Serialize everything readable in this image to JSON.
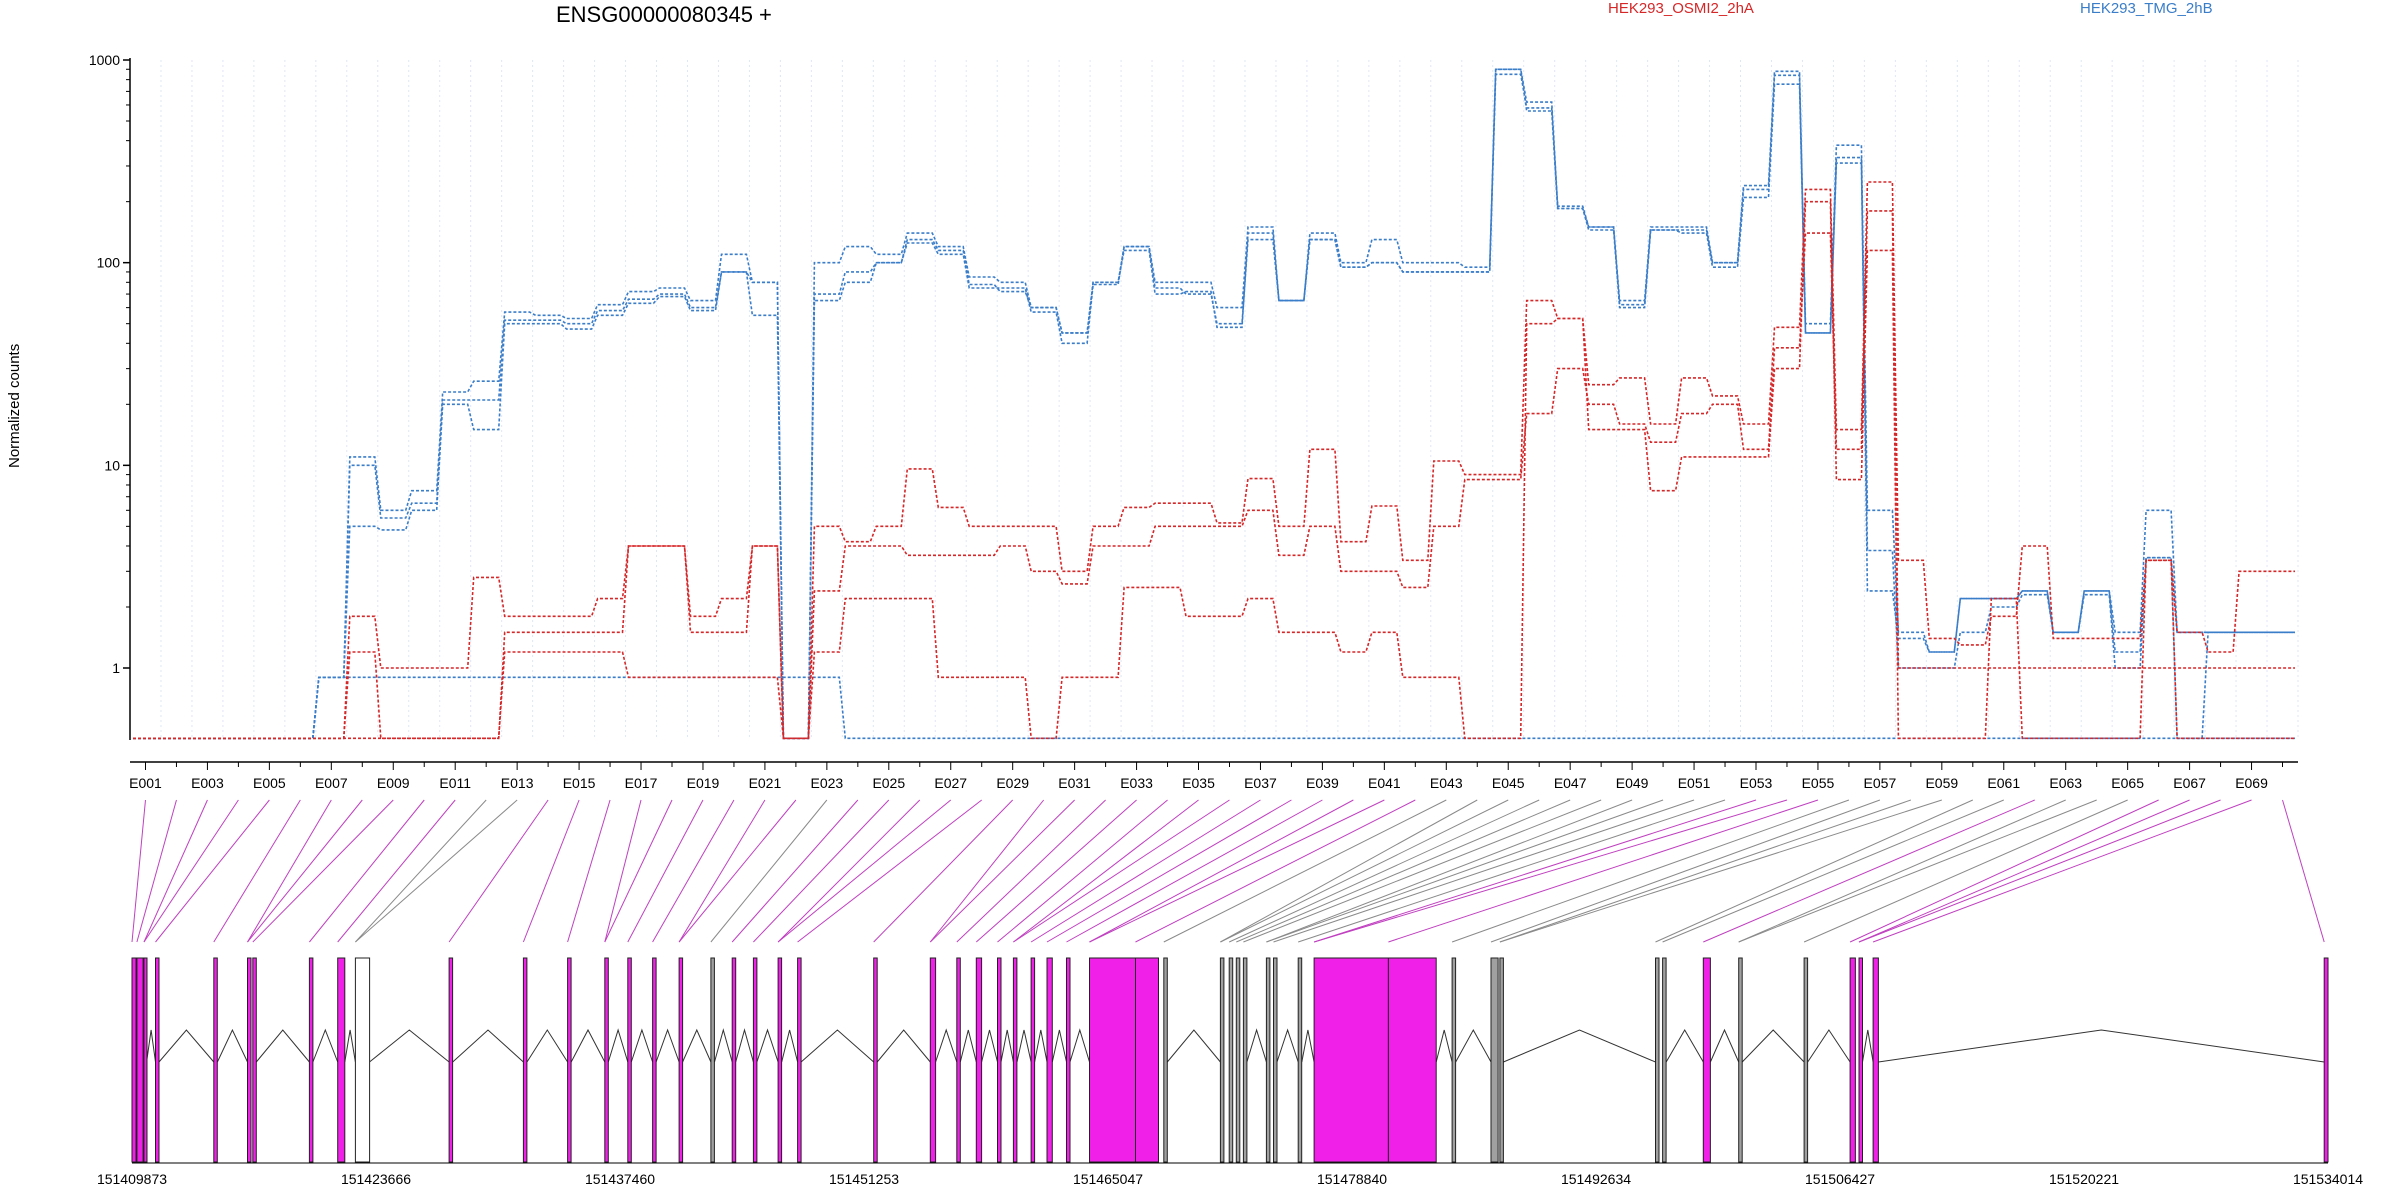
{
  "chart_data": {
    "type": "line",
    "title": "ENSG00000080345 +",
    "ylabel": "Normalized counts",
    "xlabel": "",
    "yscale": "log",
    "ylim": [
      0.45,
      1000
    ],
    "yticks": [
      "1000",
      "100",
      "10",
      "1"
    ],
    "xtick_labels": [
      "E001",
      "E003",
      "E005",
      "E007",
      "E009",
      "E011",
      "E013",
      "E015",
      "E017",
      "E019",
      "E021",
      "E023",
      "E025",
      "E027",
      "E029",
      "E031",
      "E033",
      "E035",
      "E037",
      "E039",
      "E041",
      "E043",
      "E045",
      "E047",
      "E049",
      "E051",
      "E053",
      "E055",
      "E057",
      "E059",
      "E061",
      "E063",
      "E065",
      "E067",
      "E069"
    ],
    "grid": true,
    "legend": [
      "HEK293_OSMI2_2hA",
      "HEK293_TMG_2hB"
    ],
    "series": [
      {
        "name": "HEK293_TMG_2hB",
        "color": "#3a7dc9",
        "values": [
          0.45,
          0.45,
          0.45,
          0.45,
          0.45,
          0.45,
          0.9,
          0.9,
          0.9,
          0.9,
          0.9,
          0.9,
          0.9,
          0.9,
          0.9,
          0.9,
          0.9,
          0.9,
          0.9,
          0.9,
          0.9,
          0.9,
          0.9,
          0.45,
          0.45,
          0.45,
          0.45,
          0.45,
          0.45,
          0.45,
          0.45,
          0.45,
          0.45,
          0.45,
          0.45,
          0.45,
          0.45,
          0.45,
          0.45,
          0.45,
          0.45,
          0.45,
          0.45,
          0.45,
          0.45,
          0.45,
          0.45,
          0.45,
          0.45,
          0.45,
          0.45,
          0.45,
          0.45,
          0.45,
          0.45,
          0.45,
          0.45,
          0.45,
          0.45,
          0.45,
          0.45,
          0.45,
          0.45,
          0.45,
          0.45,
          0.45,
          0.45,
          0.45,
          0.45,
          0.45
        ]
      },
      {
        "name": "HEK293_TMG_2hB",
        "color": "#3a7dc9",
        "values": [
          0.45,
          0.45,
          0.45,
          0.45,
          0.45,
          0.45,
          0.9,
          11,
          6,
          7.5,
          23,
          26,
          57,
          55,
          53,
          62,
          72,
          75,
          65,
          110,
          80,
          0.45,
          100,
          120,
          110,
          140,
          120,
          85,
          80,
          60,
          45,
          80,
          120,
          80,
          80,
          60,
          150,
          65,
          140,
          100,
          130,
          100,
          100,
          95,
          900,
          620,
          190,
          150,
          65,
          150,
          150,
          100,
          240,
          880,
          50,
          380,
          6,
          1.5,
          1.2,
          2.2,
          2.2,
          2.4,
          1.5,
          2.4,
          1.5,
          6,
          1.5,
          1.5,
          1.5,
          1.5
        ]
      },
      {
        "name": "HEK293_TMG_2hB",
        "color": "#3a7dc9",
        "values": [
          0.45,
          0.45,
          0.45,
          0.45,
          0.45,
          0.45,
          0.9,
          10,
          5.5,
          6.5,
          21,
          21,
          52,
          52,
          50,
          58,
          66,
          70,
          60,
          90,
          55,
          0.45,
          70,
          90,
          100,
          125,
          110,
          75,
          75,
          57,
          40,
          78,
          120,
          75,
          70,
          50,
          130,
          65,
          130,
          95,
          100,
          90,
          90,
          90,
          850,
          580,
          185,
          145,
          62,
          145,
          140,
          95,
          210,
          760,
          45,
          310,
          3.8,
          1,
          1,
          1.5,
          2,
          2.3,
          1.5,
          2.3,
          1,
          3.5,
          1.5,
          1.5,
          1.5,
          1.5
        ]
      },
      {
        "name": "HEK293_TMG_2hB",
        "color": "#3a7dc9",
        "values": [
          0.45,
          0.45,
          0.45,
          0.45,
          0.45,
          0.45,
          0.9,
          5,
          4.8,
          6,
          20,
          15,
          50,
          50,
          47,
          55,
          63,
          68,
          58,
          90,
          80,
          0.45,
          65,
          80,
          100,
          130,
          115,
          78,
          72,
          60,
          45,
          80,
          115,
          70,
          72,
          48,
          140,
          65,
          130,
          95,
          100,
          90,
          90,
          90,
          900,
          560,
          185,
          150,
          60,
          145,
          145,
          100,
          230,
          840,
          45,
          330,
          2.4,
          1.4,
          1.2,
          2.2,
          2.2,
          2.4,
          1.5,
          2.4,
          1.2,
          3.5,
          0.45,
          1.5,
          1.5,
          1.5
        ]
      },
      {
        "name": "HEK293_OSMI2_2hA",
        "color": "#d62728",
        "values": [
          0.45,
          0.45,
          0.45,
          0.45,
          0.45,
          0.45,
          0.45,
          1.8,
          1,
          1,
          1,
          2.8,
          1.8,
          1.8,
          1.8,
          2.2,
          4,
          4,
          1.8,
          2.2,
          4,
          0.45,
          5,
          4.2,
          5,
          9.6,
          6.2,
          5,
          5,
          5,
          3,
          5,
          6.2,
          6.5,
          6.5,
          5.2,
          8.6,
          5,
          12,
          4.2,
          6.3,
          3.4,
          10.5,
          9,
          9,
          65,
          53,
          25,
          27,
          16,
          27,
          22,
          16,
          48,
          230,
          15,
          250,
          3.4,
          1.4,
          1.3,
          1.8,
          4,
          1.4,
          1.4,
          1.4,
          3.4,
          1.5,
          1.2,
          3,
          3
        ]
      },
      {
        "name": "HEK293_OSMI2_2hA",
        "color": "#d62728",
        "values": [
          0.45,
          0.45,
          0.45,
          0.45,
          0.45,
          0.45,
          0.45,
          1.2,
          0.45,
          0.45,
          0.45,
          0.45,
          1.5,
          1.5,
          1.5,
          1.5,
          4,
          4,
          1.5,
          1.5,
          4,
          0.45,
          2.4,
          4,
          4,
          3.6,
          3.6,
          3.6,
          4,
          3,
          2.6,
          4,
          4,
          5,
          5,
          5,
          6,
          3.6,
          5,
          3,
          3,
          2.5,
          5,
          8.5,
          8.5,
          18,
          30,
          20,
          16,
          13,
          18,
          20,
          12,
          38,
          140,
          12,
          180,
          1,
          1,
          1,
          1,
          1,
          1,
          1,
          1,
          1,
          1,
          1,
          1,
          1
        ]
      },
      {
        "name": "HEK293_OSMI2_2hA",
        "color": "#d62728",
        "values": [
          0.45,
          0.45,
          0.45,
          0.45,
          0.45,
          0.45,
          0.45,
          0.45,
          0.45,
          0.45,
          0.45,
          0.45,
          1.2,
          1.2,
          1.2,
          1.2,
          0.9,
          0.9,
          0.9,
          0.9,
          0.9,
          0.45,
          1.2,
          2.2,
          2.2,
          2.2,
          0.9,
          0.9,
          0.9,
          0.45,
          0.9,
          0.9,
          2.5,
          2.5,
          1.8,
          1.8,
          2.2,
          1.5,
          1.5,
          1.2,
          1.5,
          0.9,
          0.9,
          0.45,
          0.45,
          50,
          53,
          15,
          15,
          7.5,
          11,
          11,
          11,
          30,
          200,
          8.5,
          115,
          0.45,
          0.45,
          0.45,
          2.2,
          0.45,
          0.45,
          0.45,
          0.45,
          3.4,
          0.45,
          0.45,
          0.45,
          0.45
        ]
      }
    ],
    "genomic_axis_labels": [
      "151409873",
      "151423666",
      "151437460",
      "151451253",
      "151465047",
      "151478840",
      "151492634",
      "151506427",
      "151520221",
      "151534014"
    ]
  }
}
